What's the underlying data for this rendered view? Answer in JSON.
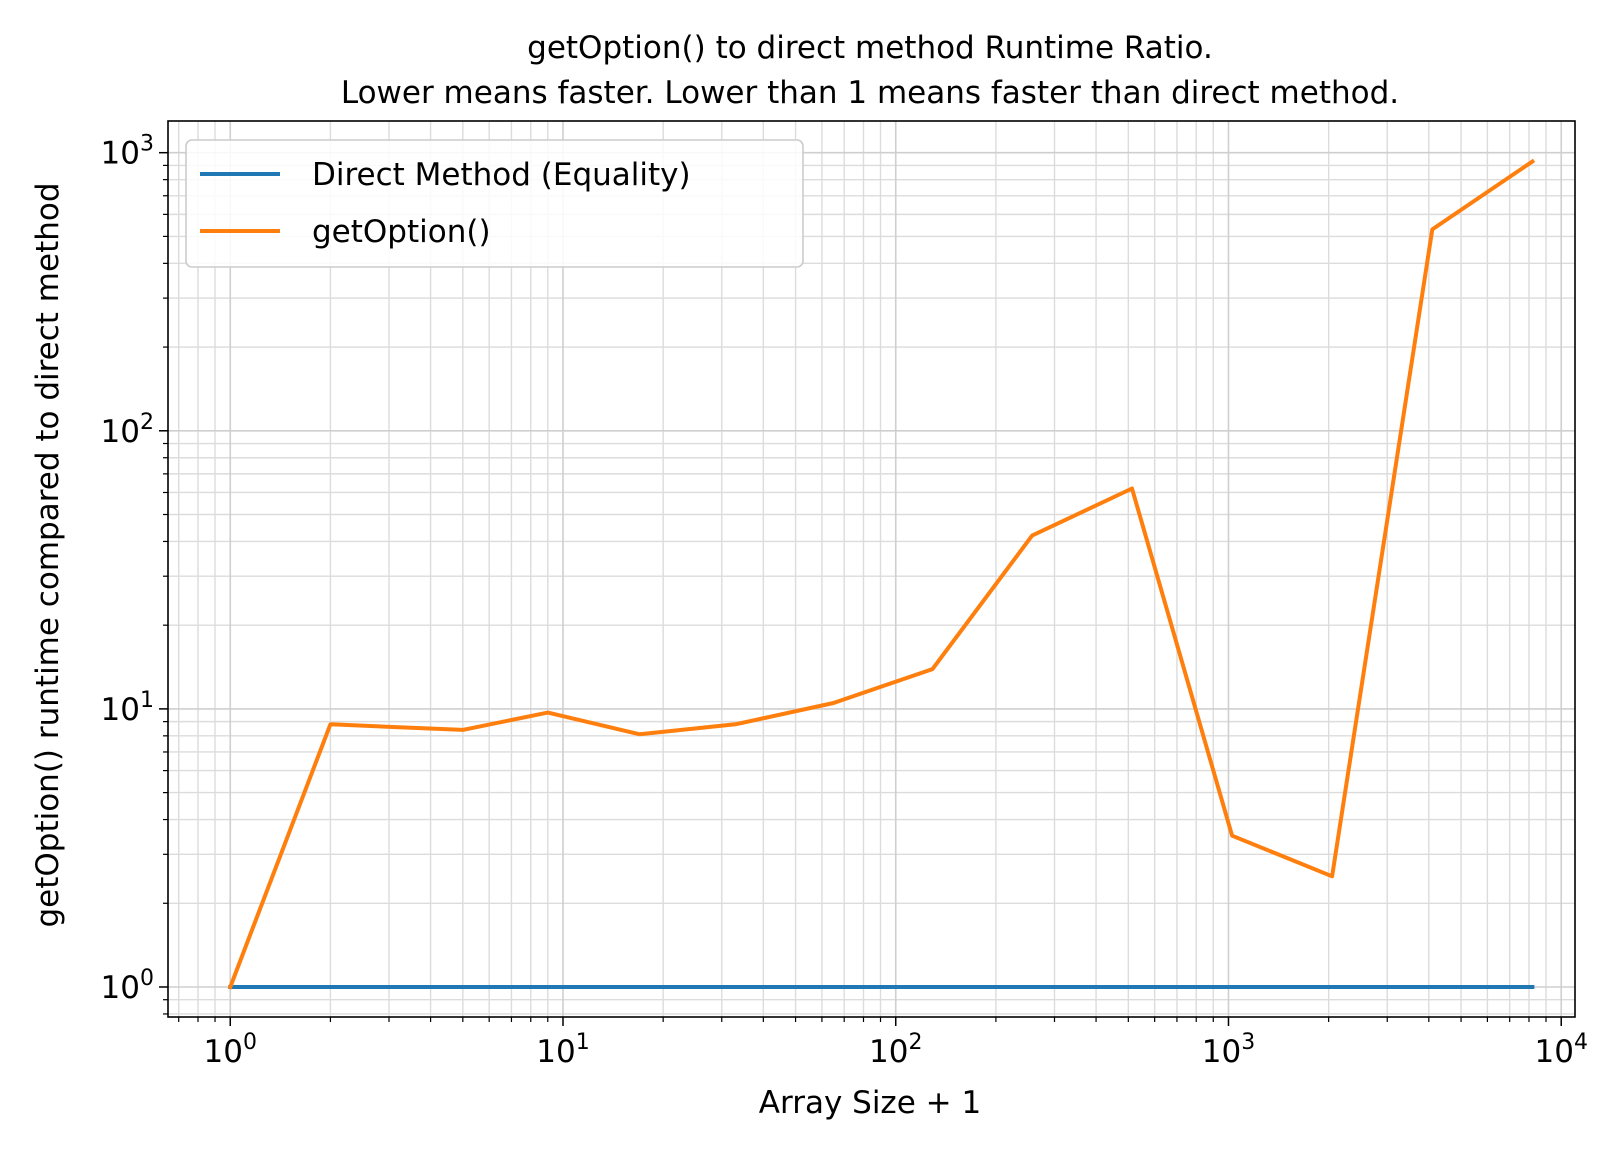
{
  "chart_data": {
    "type": "line",
    "title": "getOption() to direct method Runtime Ratio.",
    "subtitle": "Lower means faster. Lower than 1 means faster than direct method.",
    "xlabel": "Array Size + 1",
    "ylabel": "getOption() runtime compared to direct method",
    "xscale": "log",
    "yscale": "log",
    "xlim": [
      0.65,
      11000
    ],
    "ylim": [
      0.78,
      1300
    ],
    "grid": "major and minor",
    "legend_position": "top-left",
    "x_ticks": [
      {
        "value": 1,
        "base": "10",
        "exp": "0"
      },
      {
        "value": 10,
        "base": "10",
        "exp": "1"
      },
      {
        "value": 100,
        "base": "10",
        "exp": "2"
      },
      {
        "value": 1000,
        "base": "10",
        "exp": "3"
      },
      {
        "value": 10000,
        "base": "10",
        "exp": "4"
      }
    ],
    "y_ticks": [
      {
        "value": 1,
        "base": "10",
        "exp": "0"
      },
      {
        "value": 10,
        "base": "10",
        "exp": "1"
      },
      {
        "value": 100,
        "base": "10",
        "exp": "2"
      },
      {
        "value": 1000,
        "base": "10",
        "exp": "3"
      }
    ],
    "x": [
      1,
      2,
      5,
      9,
      17,
      33,
      65,
      129,
      257,
      513,
      1025,
      2049,
      4097,
      8193
    ],
    "series": [
      {
        "name": "Direct Method (Equality)",
        "color": "#1f77b4",
        "values": [
          1,
          1,
          1,
          1,
          1,
          1,
          1,
          1,
          1,
          1,
          1,
          1,
          1,
          1
        ]
      },
      {
        "name": "getOption()",
        "color": "#ff7f0e",
        "values": [
          1.0,
          8.8,
          8.4,
          9.7,
          8.1,
          8.8,
          10.5,
          13.9,
          42,
          62,
          3.5,
          2.5,
          530,
          930
        ]
      }
    ]
  }
}
